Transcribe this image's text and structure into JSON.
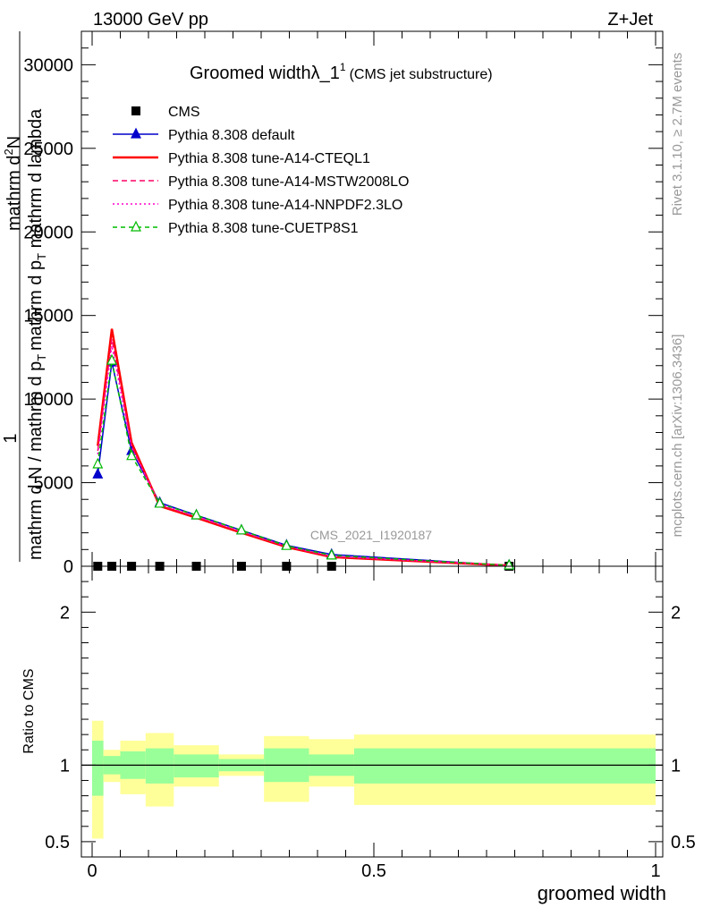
{
  "header": {
    "left": "13000 GeV pp",
    "right": "Z+Jet"
  },
  "side_labels": {
    "rivet": "Rivet 3.1.10, ≥ 2.7M events",
    "mcplots": "mcplots.cern.ch [arXiv:1306.3436]"
  },
  "colors": {
    "cms": "#000000",
    "default": "#0000cc",
    "a14_cteql1": "#ff0000",
    "a14_mstw": "#ff0066",
    "a14_nnpdf": "#ff00cc",
    "cuetp8s1": "#00bb00",
    "band_inner": "#99ff99",
    "band_outer": "#ffff99"
  },
  "chart_data": [
    {
      "type": "line",
      "title_main": "Groomed width",
      "title_lambda": "λ_1",
      "title_sup": "1",
      "title_suffix": "(CMS jet substructure)",
      "watermark": "CMS_2021_I1920187",
      "ylabel_lines": [
        "1",
        "mathrm d N / mathrm d p",
        "mathrm d p_T mathrm d lambda",
        "mathrm d^2N"
      ],
      "ylabel_parts": {
        "one": "1",
        "bottom": "mathrm d N / mathrm d p",
        "bottom_sub": "T",
        "top_a": "mathrm d",
        "top_sup": "2",
        "top_b": "N",
        "mid": "mathrm d p",
        "mid_sub": "T",
        "mid_b": " mathrm d lambda",
        "overlap": "a"
      },
      "xlim": [
        0,
        1
      ],
      "ylim": [
        0,
        32000
      ],
      "y_ticks": [
        0,
        5000,
        10000,
        15000,
        20000,
        25000,
        30000
      ],
      "y_tick_labels": [
        "0",
        "5000",
        "10000",
        "15000",
        "20000",
        "25000",
        "30000"
      ],
      "legend_position": "top-left",
      "x": [
        0.01,
        0.035,
        0.07,
        0.12,
        0.185,
        0.265,
        0.345,
        0.425,
        0.74
      ],
      "series": [
        {
          "name": "CMS",
          "key": "cms",
          "style": "square",
          "values": [
            0,
            0,
            0,
            0,
            0,
            0,
            0,
            0,
            0
          ]
        },
        {
          "name": "Pythia 8.308 default",
          "key": "default",
          "style": "solid-triangle",
          "values": [
            5500,
            12200,
            6900,
            3800,
            3050,
            2150,
            1250,
            700,
            50
          ]
        },
        {
          "name": "Pythia 8.308 tune-A14-CTEQL1",
          "key": "a14_cteql1",
          "style": "solid",
          "values": [
            7200,
            14200,
            7400,
            3600,
            2900,
            2000,
            1150,
            550,
            40
          ]
        },
        {
          "name": "Pythia 8.308 tune-A14-MSTW2008LO",
          "key": "a14_mstw",
          "style": "dashed",
          "values": [
            6900,
            13600,
            7200,
            3650,
            2950,
            2050,
            1180,
            580,
            40
          ]
        },
        {
          "name": "Pythia 8.308 tune-A14-NNPDF2.3LO",
          "key": "a14_nnpdf",
          "style": "dotted",
          "values": [
            6700,
            13200,
            7100,
            3700,
            3000,
            2080,
            1200,
            600,
            45
          ]
        },
        {
          "name": "Pythia 8.308 tune-CUETP8S1",
          "key": "cuetp8s1",
          "style": "dashed-open-triangle",
          "values": [
            6100,
            12300,
            6600,
            3750,
            3050,
            2150,
            1220,
            650,
            50
          ]
        }
      ]
    },
    {
      "type": "area",
      "ylabel": "Ratio to CMS",
      "xlabel": "groomed width",
      "xlim": [
        0,
        1
      ],
      "ylim": [
        0.4,
        2.3
      ],
      "x_ticks": [
        0,
        0.5,
        1
      ],
      "x_tick_labels": [
        "0",
        "0.5",
        "1"
      ],
      "y_ticks": [
        0.5,
        1,
        2
      ],
      "y_tick_labels": [
        "0.5",
        "1",
        "2"
      ],
      "reference_line": 1,
      "bins": [
        {
          "lo": 0.0,
          "hi": 0.02,
          "inner": [
            0.8,
            1.16
          ],
          "outer": [
            0.52,
            1.29
          ]
        },
        {
          "lo": 0.02,
          "hi": 0.05,
          "inner": [
            0.94,
            1.06
          ],
          "outer": [
            0.89,
            1.1
          ]
        },
        {
          "lo": 0.05,
          "hi": 0.095,
          "inner": [
            0.91,
            1.09
          ],
          "outer": [
            0.81,
            1.16
          ]
        },
        {
          "lo": 0.095,
          "hi": 0.145,
          "inner": [
            0.88,
            1.11
          ],
          "outer": [
            0.73,
            1.21
          ]
        },
        {
          "lo": 0.145,
          "hi": 0.225,
          "inner": [
            0.92,
            1.07
          ],
          "outer": [
            0.86,
            1.13
          ]
        },
        {
          "lo": 0.225,
          "hi": 0.305,
          "inner": [
            0.96,
            1.04
          ],
          "outer": [
            0.93,
            1.07
          ]
        },
        {
          "lo": 0.305,
          "hi": 0.385,
          "inner": [
            0.89,
            1.11
          ],
          "outer": [
            0.76,
            1.19
          ]
        },
        {
          "lo": 0.385,
          "hi": 0.465,
          "inner": [
            0.93,
            1.07
          ],
          "outer": [
            0.86,
            1.17
          ]
        },
        {
          "lo": 0.465,
          "hi": 1.0,
          "inner": [
            0.88,
            1.11
          ],
          "outer": [
            0.74,
            1.2
          ]
        }
      ]
    }
  ]
}
